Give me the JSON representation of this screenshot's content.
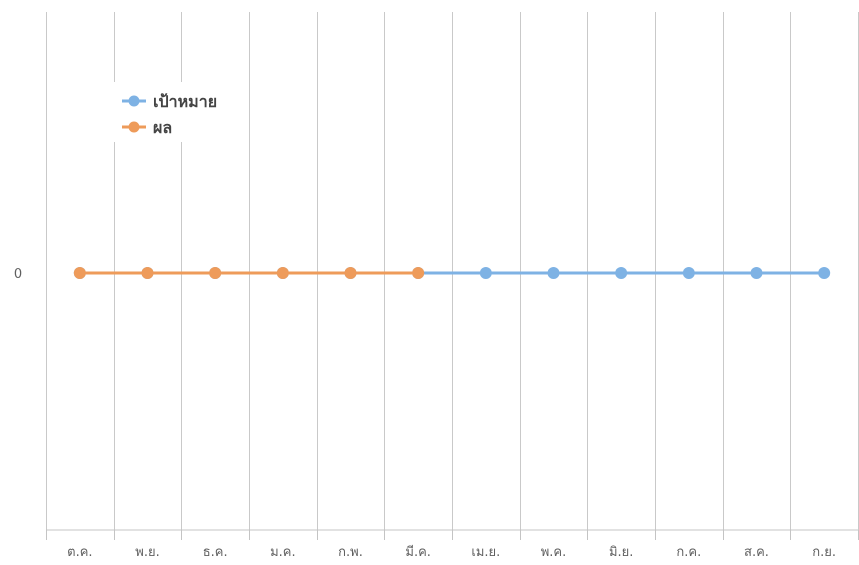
{
  "chart_data": {
    "type": "line",
    "title": "",
    "xlabel": "",
    "ylabel": "",
    "categories": [
      "ต.ค.",
      "พ.ย.",
      "ธ.ค.",
      "ม.ค.",
      "ก.พ.",
      "มี.ค.",
      "เม.ย.",
      "พ.ค.",
      "มิ.ย.",
      "ก.ค.",
      "ส.ค.",
      "ก.ย."
    ],
    "y_ticks": [
      "0"
    ],
    "series": [
      {
        "name": "เป้าหมาย",
        "color": "#7eb2e4",
        "values": [
          0,
          0,
          0,
          0,
          0,
          0,
          0,
          0,
          0,
          0,
          0,
          0
        ]
      },
      {
        "name": "ผล",
        "color": "#ee9b5a",
        "values": [
          0,
          0,
          0,
          0,
          0,
          0,
          null,
          null,
          null,
          null,
          null,
          null
        ]
      }
    ],
    "grid": {
      "vertical": true,
      "horizontal": false
    },
    "legend": {
      "position": "top-left"
    }
  }
}
